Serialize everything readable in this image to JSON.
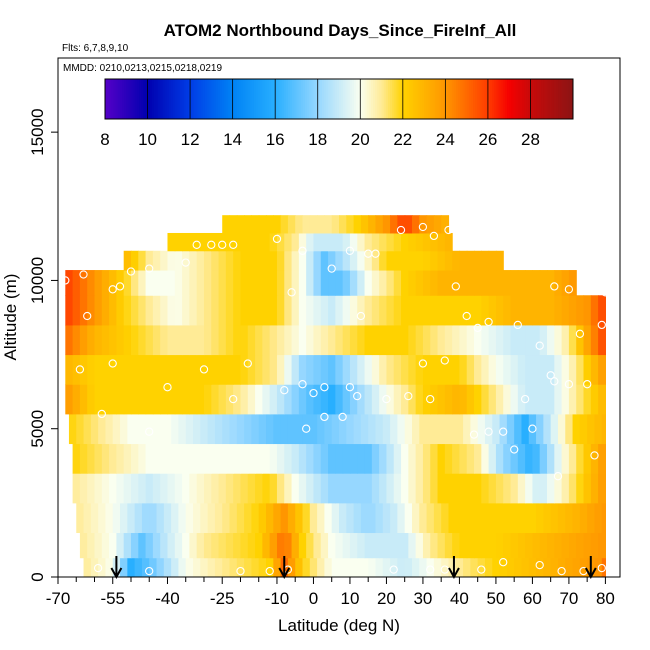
{
  "chart_data": {
    "type": "heatmap",
    "title": "ATOM2 Northbound Days_Since_FireInf_All",
    "flights_label": "Flts: 6,7,8,9,10",
    "dates_label": "MMDD: 0210,0213,0215,0218,0219",
    "xlabel": "Latitude (deg N)",
    "ylabel": "Altitude (m)",
    "xlim": [
      -70,
      84
    ],
    "ylim": [
      0,
      17500
    ],
    "x_ticks": [
      -70,
      -55,
      -40,
      -25,
      -10,
      0,
      10,
      20,
      30,
      40,
      50,
      60,
      70,
      80
    ],
    "x_tick_labels": [
      "-70",
      "-55",
      "-40",
      "-25",
      "-10",
      "0",
      "10",
      "20",
      "30",
      "40",
      "50",
      "60",
      "70",
      "80"
    ],
    "x_minor_ticks": [
      -65,
      -60,
      -50,
      -45,
      -35,
      -30,
      -20,
      -15,
      -5,
      5,
      15,
      25,
      35,
      45,
      55,
      65,
      75
    ],
    "y_ticks": [
      0,
      5000,
      10000,
      15000
    ],
    "y_tick_labels": [
      "0",
      "5000",
      "10000",
      "15000"
    ],
    "colorbar": {
      "range": [
        8,
        30
      ],
      "tick_values": [
        8,
        10,
        12,
        14,
        16,
        18,
        20,
        22,
        24,
        26,
        28
      ],
      "tick_labels": [
        "8",
        "10",
        "12",
        "14",
        "16",
        "18",
        "20",
        "22",
        "24",
        "26",
        "28"
      ]
    },
    "profile_arrows_lat": [
      -54,
      -8,
      38.5,
      76
    ],
    "altitude_bins": [
      {
        "alt": 300,
        "lat_range": [
          -63,
          80
        ],
        "values": [
          [
            -63,
            21
          ],
          [
            -55,
            20
          ],
          [
            -50,
            16
          ],
          [
            -45,
            17
          ],
          [
            -35,
            20
          ],
          [
            -25,
            21
          ],
          [
            -12,
            22
          ],
          [
            -8,
            25
          ],
          [
            -3,
            22
          ],
          [
            5,
            20
          ],
          [
            15,
            20
          ],
          [
            25,
            19
          ],
          [
            32,
            20
          ],
          [
            40,
            21
          ],
          [
            50,
            22
          ],
          [
            65,
            23
          ],
          [
            78,
            24
          ],
          [
            80,
            25
          ]
        ]
      },
      {
        "alt": 1000,
        "lat_range": [
          -64,
          80
        ],
        "values": [
          [
            -64,
            21
          ],
          [
            -55,
            20
          ],
          [
            -47,
            17
          ],
          [
            -40,
            19
          ],
          [
            -30,
            21
          ],
          [
            -15,
            22
          ],
          [
            -8,
            25
          ],
          [
            -3,
            22
          ],
          [
            5,
            20
          ],
          [
            15,
            19
          ],
          [
            25,
            19
          ],
          [
            32,
            21
          ],
          [
            40,
            22
          ],
          [
            50,
            22
          ],
          [
            65,
            23
          ],
          [
            80,
            24
          ]
        ]
      },
      {
        "alt": 2000,
        "lat_range": [
          -65,
          80
        ],
        "values": [
          [
            -65,
            21
          ],
          [
            -55,
            20
          ],
          [
            -45,
            18
          ],
          [
            -35,
            20
          ],
          [
            -25,
            21
          ],
          [
            -15,
            22
          ],
          [
            -8,
            24
          ],
          [
            0,
            21
          ],
          [
            8,
            19
          ],
          [
            15,
            18
          ],
          [
            22,
            19
          ],
          [
            30,
            21
          ],
          [
            38,
            22
          ],
          [
            48,
            22
          ],
          [
            60,
            22
          ],
          [
            72,
            23
          ],
          [
            80,
            24
          ]
        ]
      },
      {
        "alt": 3000,
        "lat_range": [
          -66,
          80
        ],
        "values": [
          [
            -66,
            21
          ],
          [
            -55,
            20
          ],
          [
            -45,
            19
          ],
          [
            -35,
            20
          ],
          [
            -25,
            21
          ],
          [
            -12,
            22
          ],
          [
            -5,
            20
          ],
          [
            5,
            18
          ],
          [
            15,
            18
          ],
          [
            25,
            20
          ],
          [
            35,
            22
          ],
          [
            45,
            22
          ],
          [
            55,
            21
          ],
          [
            62,
            19
          ],
          [
            70,
            21
          ],
          [
            80,
            24
          ]
        ]
      },
      {
        "alt": 4000,
        "lat_range": [
          -66,
          80
        ],
        "values": [
          [
            -66,
            22
          ],
          [
            -55,
            21
          ],
          [
            -45,
            20
          ],
          [
            -35,
            20
          ],
          [
            -25,
            20
          ],
          [
            -12,
            20
          ],
          [
            -5,
            19
          ],
          [
            5,
            17
          ],
          [
            15,
            17
          ],
          [
            25,
            20
          ],
          [
            35,
            22
          ],
          [
            45,
            21
          ],
          [
            52,
            18
          ],
          [
            60,
            16
          ],
          [
            68,
            20
          ],
          [
            80,
            24
          ]
        ]
      },
      {
        "alt": 5000,
        "lat_range": [
          -67,
          80
        ],
        "values": [
          [
            -67,
            22
          ],
          [
            -58,
            21
          ],
          [
            -50,
            20
          ],
          [
            -40,
            20
          ],
          [
            -30,
            19
          ],
          [
            -20,
            18
          ],
          [
            -10,
            17
          ],
          [
            0,
            17
          ],
          [
            10,
            18
          ],
          [
            20,
            19
          ],
          [
            30,
            21
          ],
          [
            40,
            21
          ],
          [
            50,
            19
          ],
          [
            58,
            16
          ],
          [
            65,
            19
          ],
          [
            72,
            22
          ],
          [
            80,
            23
          ]
        ]
      },
      {
        "alt": 6000,
        "lat_range": [
          -68,
          80
        ],
        "values": [
          [
            -68,
            24
          ],
          [
            -60,
            22
          ],
          [
            -50,
            22
          ],
          [
            -40,
            22
          ],
          [
            -30,
            22
          ],
          [
            -20,
            21
          ],
          [
            -10,
            19
          ],
          [
            -2,
            17
          ],
          [
            5,
            16
          ],
          [
            12,
            18
          ],
          [
            20,
            20
          ],
          [
            30,
            22
          ],
          [
            40,
            23
          ],
          [
            50,
            21
          ],
          [
            58,
            19
          ],
          [
            65,
            19
          ],
          [
            72,
            21
          ],
          [
            80,
            23
          ]
        ]
      },
      {
        "alt": 7000,
        "lat_range": [
          -68,
          80
        ],
        "values": [
          [
            -68,
            23
          ],
          [
            -60,
            22
          ],
          [
            -50,
            22
          ],
          [
            -40,
            22
          ],
          [
            -30,
            22
          ],
          [
            -20,
            22
          ],
          [
            -10,
            21
          ],
          [
            -3,
            18
          ],
          [
            5,
            17
          ],
          [
            12,
            19
          ],
          [
            20,
            21
          ],
          [
            30,
            22
          ],
          [
            40,
            22
          ],
          [
            50,
            20
          ],
          [
            58,
            19
          ],
          [
            65,
            19
          ],
          [
            72,
            21
          ],
          [
            80,
            24
          ]
        ]
      },
      {
        "alt": 8000,
        "lat_range": [
          -68,
          80
        ],
        "values": [
          [
            -68,
            25
          ],
          [
            -60,
            23
          ],
          [
            -50,
            22
          ],
          [
            -40,
            21
          ],
          [
            -30,
            21
          ],
          [
            -20,
            22
          ],
          [
            -10,
            21
          ],
          [
            -3,
            20
          ],
          [
            5,
            21
          ],
          [
            15,
            22
          ],
          [
            25,
            22
          ],
          [
            35,
            21
          ],
          [
            45,
            20
          ],
          [
            55,
            19
          ],
          [
            62,
            19
          ],
          [
            70,
            21
          ],
          [
            80,
            26
          ]
        ]
      },
      {
        "alt": 9000,
        "lat_range": [
          -68,
          80
        ],
        "values": [
          [
            -68,
            26
          ],
          [
            -60,
            24
          ],
          [
            -52,
            22
          ],
          [
            -45,
            21
          ],
          [
            -38,
            20
          ],
          [
            -30,
            21
          ],
          [
            -20,
            22
          ],
          [
            -10,
            22
          ],
          [
            -3,
            20
          ],
          [
            5,
            19
          ],
          [
            15,
            21
          ],
          [
            25,
            22
          ],
          [
            35,
            22
          ],
          [
            45,
            22
          ],
          [
            55,
            23
          ],
          [
            65,
            23
          ],
          [
            75,
            24
          ],
          [
            80,
            26
          ]
        ]
      },
      {
        "alt": 10000,
        "lat_range": [
          -68,
          72
        ],
        "values": [
          [
            -68,
            26
          ],
          [
            -60,
            24
          ],
          [
            -52,
            22
          ],
          [
            -45,
            20
          ],
          [
            -38,
            20
          ],
          [
            -30,
            21
          ],
          [
            -20,
            22
          ],
          [
            -10,
            22
          ],
          [
            -3,
            20
          ],
          [
            3,
            17
          ],
          [
            8,
            17
          ],
          [
            15,
            20
          ],
          [
            25,
            22
          ],
          [
            35,
            23
          ],
          [
            45,
            23
          ],
          [
            55,
            23
          ],
          [
            65,
            23
          ],
          [
            72,
            24
          ]
        ]
      },
      {
        "alt": 10700,
        "lat_range": [
          -52,
          52
        ],
        "values": [
          [
            -52,
            23
          ],
          [
            -45,
            21
          ],
          [
            -38,
            20
          ],
          [
            -30,
            21
          ],
          [
            -20,
            22
          ],
          [
            -10,
            22
          ],
          [
            -3,
            20
          ],
          [
            3,
            17
          ],
          [
            10,
            19
          ],
          [
            20,
            22
          ],
          [
            30,
            22
          ],
          [
            40,
            23
          ],
          [
            52,
            23
          ]
        ]
      },
      {
        "alt": 11300,
        "lat_range": [
          -40,
          38
        ],
        "values": [
          [
            -40,
            22
          ],
          [
            -32,
            22
          ],
          [
            -22,
            22
          ],
          [
            -12,
            22
          ],
          [
            -5,
            21
          ],
          [
            0,
            19
          ],
          [
            8,
            19
          ],
          [
            15,
            21
          ],
          [
            25,
            22
          ],
          [
            38,
            23
          ]
        ]
      },
      {
        "alt": 11900,
        "lat_range": [
          -25,
          37
        ],
        "values": [
          [
            -25,
            22
          ],
          [
            -18,
            22
          ],
          [
            -10,
            22
          ],
          [
            -3,
            21
          ],
          [
            5,
            21
          ],
          [
            12,
            22
          ],
          [
            20,
            24
          ],
          [
            25,
            26
          ],
          [
            30,
            24
          ],
          [
            37,
            23
          ]
        ]
      }
    ],
    "sample_points": [
      [
        -59,
        300
      ],
      [
        -45,
        200
      ],
      [
        -20,
        200
      ],
      [
        -12,
        200
      ],
      [
        -7,
        250
      ],
      [
        22,
        250
      ],
      [
        32,
        250
      ],
      [
        36,
        250
      ],
      [
        46,
        250
      ],
      [
        52,
        500
      ],
      [
        62,
        400
      ],
      [
        68,
        200
      ],
      [
        74,
        200
      ],
      [
        79,
        300
      ],
      [
        -58,
        5500
      ],
      [
        -45,
        4900
      ],
      [
        -55,
        7200
      ],
      [
        -40,
        6400
      ],
      [
        -30,
        7000
      ],
      [
        -22,
        6000
      ],
      [
        -18,
        7200
      ],
      [
        -8,
        6300
      ],
      [
        -3,
        6500
      ],
      [
        -2,
        5000
      ],
      [
        0,
        6200
      ],
      [
        3,
        6400
      ],
      [
        3,
        5400
      ],
      [
        8,
        5400
      ],
      [
        10,
        6400
      ],
      [
        12,
        6100
      ],
      [
        20,
        6000
      ],
      [
        26,
        6100
      ],
      [
        30,
        7200
      ],
      [
        32,
        6000
      ],
      [
        36,
        7300
      ],
      [
        44,
        4800
      ],
      [
        48,
        4900
      ],
      [
        52,
        4900
      ],
      [
        55,
        4300
      ],
      [
        58,
        6000
      ],
      [
        60,
        5000
      ],
      [
        62,
        7800
      ],
      [
        65,
        6800
      ],
      [
        66,
        6600
      ],
      [
        67,
        3400
      ],
      [
        70,
        6500
      ],
      [
        75,
        6500
      ],
      [
        77,
        4100
      ],
      [
        -64,
        7000
      ],
      [
        -62,
        8800
      ],
      [
        -55,
        9700
      ],
      [
        -53,
        9800
      ],
      [
        -50,
        10300
      ],
      [
        -45,
        10400
      ],
      [
        -35,
        10600
      ],
      [
        -32,
        11200
      ],
      [
        -28,
        11200
      ],
      [
        -25,
        11200
      ],
      [
        -22,
        11200
      ],
      [
        -10,
        11400
      ],
      [
        -6,
        9600
      ],
      [
        -3,
        11000
      ],
      [
        5,
        10400
      ],
      [
        10,
        11000
      ],
      [
        13,
        8800
      ],
      [
        15,
        10900
      ],
      [
        17,
        10900
      ],
      [
        24,
        11700
      ],
      [
        30,
        11800
      ],
      [
        33,
        11500
      ],
      [
        37,
        11700
      ],
      [
        39,
        9800
      ],
      [
        42,
        8800
      ],
      [
        45,
        8400
      ],
      [
        48,
        8600
      ],
      [
        56,
        8500
      ],
      [
        66,
        9800
      ],
      [
        70,
        9700
      ],
      [
        73,
        8200
      ],
      [
        79,
        8500
      ],
      [
        80,
        9600
      ],
      [
        -68,
        10000
      ],
      [
        -63,
        10200
      ]
    ]
  }
}
